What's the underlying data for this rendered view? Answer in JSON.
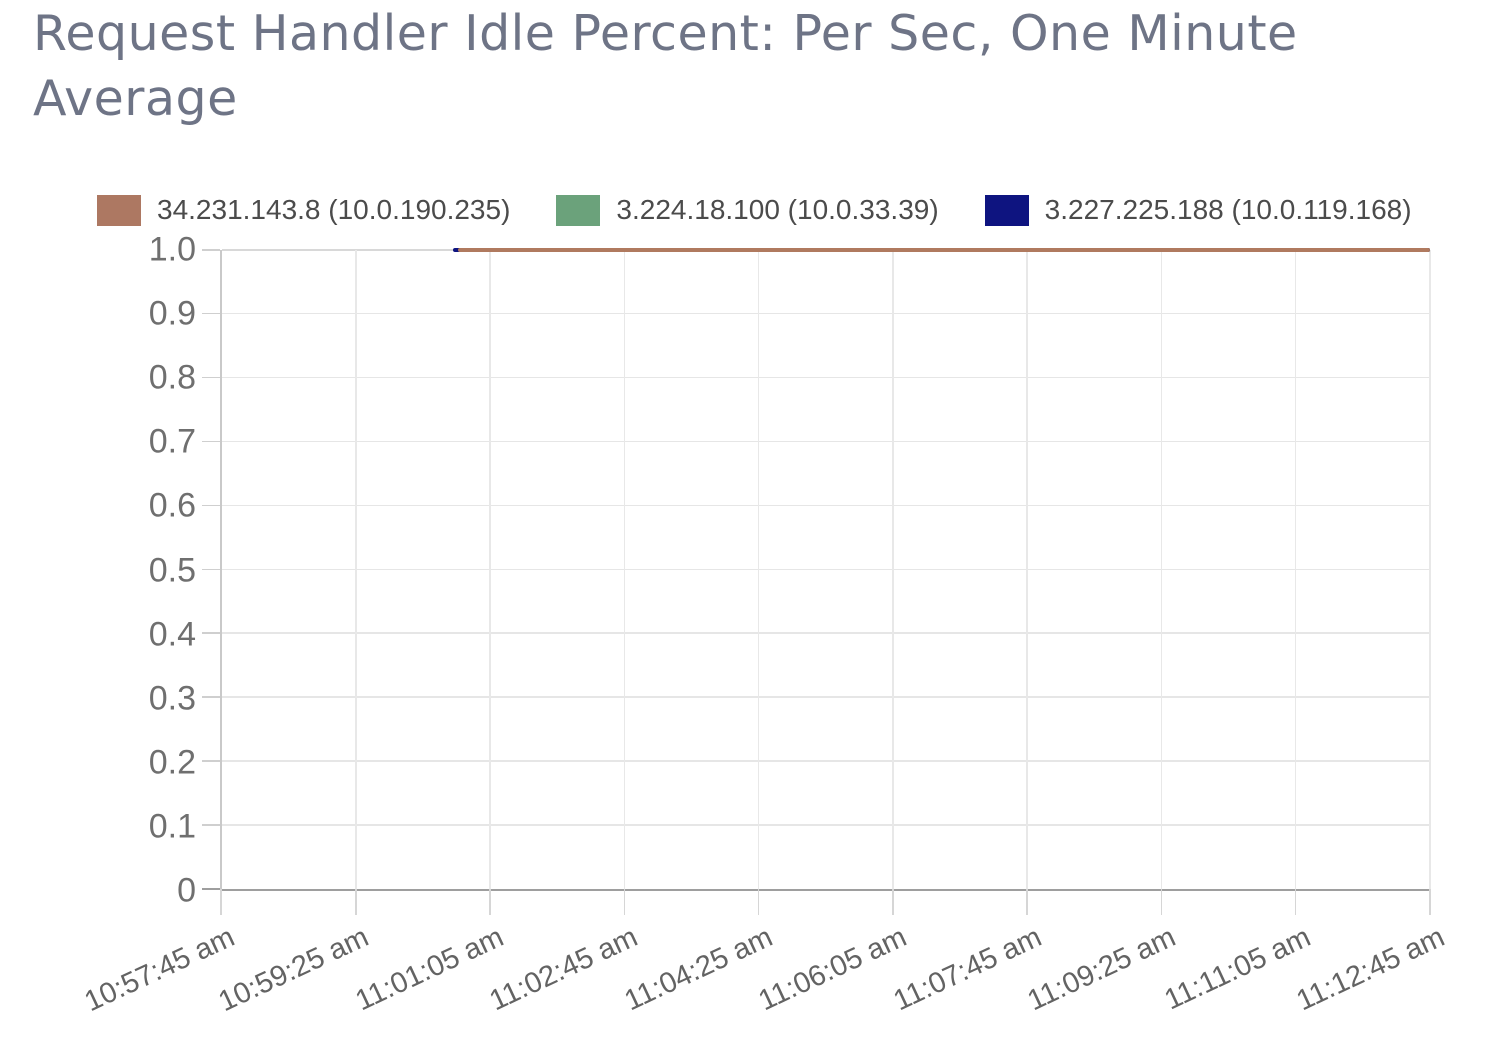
{
  "title": "Request Handler Idle Percent: Per Sec, One Minute Average",
  "legend": {
    "items": [
      {
        "label": "34.231.143.8 (10.0.190.235)",
        "color": "#ad7862"
      },
      {
        "label": "3.224.18.100 (10.0.33.39)",
        "color": "#6ba27b"
      },
      {
        "label": "3.227.225.188 (10.0.119.168)",
        "color": "#0e1480"
      }
    ]
  },
  "chart_data": {
    "type": "line",
    "title": "Request Handler Idle Percent: Per Sec, One Minute Average",
    "xlabel": "",
    "ylabel": "",
    "ylim": [
      0,
      1.0
    ],
    "grid": true,
    "legend_position": "top",
    "y_ticks": [
      "1.0",
      "0.9",
      "0.8",
      "0.7",
      "0.6",
      "0.5",
      "0.4",
      "0.3",
      "0.2",
      "0.1",
      "0"
    ],
    "x_ticks": [
      "10:57:45 am",
      "10:59:25 am",
      "11:01:05 am",
      "11:02:45 am",
      "11:04:25 am",
      "11:06:05 am",
      "11:07:45 am",
      "11:09:25 am",
      "11:11:05 am",
      "11:12:45 am"
    ],
    "x_range": [
      "10:57:45 am",
      "11:12:45 am"
    ],
    "series": [
      {
        "name": "3.224.18.100 (10.0.33.39)",
        "color": "#6ba27b",
        "points": [
          {
            "x": "11:00:41 am",
            "y": 1.0
          },
          {
            "x": "11:12:45 am",
            "y": 1.0
          }
        ]
      },
      {
        "name": "3.227.225.188 (10.0.119.168)",
        "color": "#0e1480",
        "points": [
          {
            "x": "11:00:37 am",
            "y": 1.0
          },
          {
            "x": "11:12:45 am",
            "y": 1.0
          }
        ]
      },
      {
        "name": "34.231.143.8 (10.0.190.235)",
        "color": "#b07a5f",
        "points": [
          {
            "x": "11:00:41 am",
            "y": 1.0
          },
          {
            "x": "11:12:45 am",
            "y": 1.0
          }
        ]
      }
    ]
  }
}
